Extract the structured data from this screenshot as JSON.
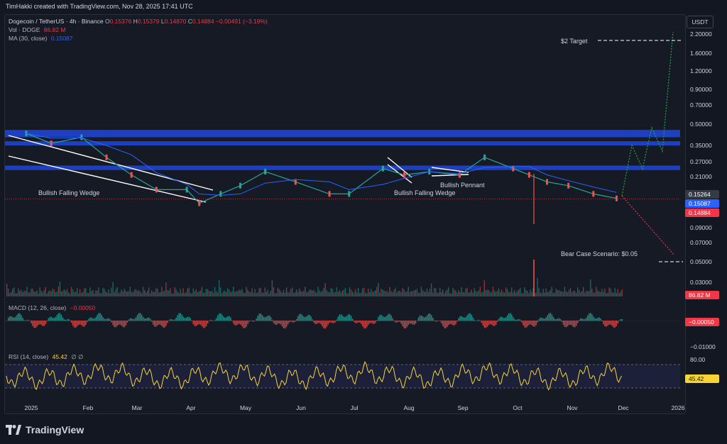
{
  "header": {
    "created_by": "TimHakki created with TradingView.com, Nov 28, 2025 17:41 UTC"
  },
  "legend": {
    "symbol": "Dogecoin / TetherUS · 4h · Binance",
    "ohlc_o_label": "O",
    "ohlc_o": "0.15376",
    "ohlc_h_label": "H",
    "ohlc_h": "0.15379",
    "ohlc_l_label": "L",
    "ohlc_l": "0.14870",
    "ohlc_c_label": "C",
    "ohlc_c": "0.14884",
    "change": "−0.00491 (−3.19%)",
    "vol_label": "Vol · DOGE",
    "vol_value": "86.82 M",
    "ma_label": "MA (30, close)",
    "ma_value": "0.15087",
    "macd_label": "MACD (12, 26, close)",
    "macd_value": "−0.00050",
    "rsi_label": "RSI (14, close)",
    "rsi_value": "45.42",
    "rsi_extra": "∅ ∅"
  },
  "currency_button": "USDT",
  "colors": {
    "bg": "#131722",
    "zone": "#1e3fbf",
    "up": "#26a69a",
    "down": "#ef5350",
    "ma": "#2962ff",
    "rsi": "#f7d434",
    "projection_up": "#22ab3c",
    "projection_down": "#f23645"
  },
  "chart_data": {
    "type": "line",
    "title": "Dogecoin / TetherUS · 4h · Binance",
    "x_labels": [
      "2025",
      "Feb",
      "Mar",
      "Apr",
      "May",
      "Jun",
      "Jul",
      "Aug",
      "Sep",
      "Oct",
      "Nov",
      "Dec",
      "2026"
    ],
    "y_scale": "log",
    "y_ticks": [
      "2.20000",
      "1.60000",
      "1.20000",
      "0.90000",
      "0.70000",
      "0.50000",
      "0.35000",
      "0.27000",
      "0.21000",
      "0.09000",
      "0.07000",
      "0.05000",
      "0.03000"
    ],
    "price_tags": {
      "last": "0.15264",
      "ma": "0.15087",
      "close": "0.14884"
    },
    "series": [
      {
        "name": "Dogecoin / TetherUS",
        "x": [
          "2025-01-01",
          "2025-01-15",
          "2025-02-01",
          "2025-02-15",
          "2025-03-01",
          "2025-03-15",
          "2025-04-01",
          "2025-04-08",
          "2025-04-20",
          "2025-05-01",
          "2025-05-15",
          "2025-06-01",
          "2025-06-20",
          "2025-07-01",
          "2025-07-20",
          "2025-08-01",
          "2025-08-15",
          "2025-09-01",
          "2025-09-15",
          "2025-10-01",
          "2025-10-10",
          "2025-10-20",
          "2025-11-01",
          "2025-11-15",
          "2025-11-28"
        ],
        "values": [
          0.38,
          0.33,
          0.36,
          0.27,
          0.21,
          0.17,
          0.17,
          0.14,
          0.16,
          0.18,
          0.22,
          0.19,
          0.16,
          0.16,
          0.23,
          0.21,
          0.22,
          0.21,
          0.27,
          0.23,
          0.21,
          0.19,
          0.18,
          0.16,
          0.15
        ]
      }
    ],
    "zones": [
      [
        0.36,
        0.4
      ],
      [
        0.32,
        0.34
      ],
      [
        0.225,
        0.24
      ]
    ],
    "annotations": [
      "Bullish Falling Wedge",
      "Bullish Falling Wedge",
      "Bullish Pennant",
      "$2 Target",
      "Bear Case Scenario: $0.05"
    ],
    "volume_tag": "86.82 M",
    "macd": {
      "tick": "−0.01000",
      "tag": "−0.00050"
    },
    "rsi": {
      "ticks": [
        "80.00"
      ],
      "tag": "45.42",
      "upper": 70,
      "lower": 30
    }
  }
}
